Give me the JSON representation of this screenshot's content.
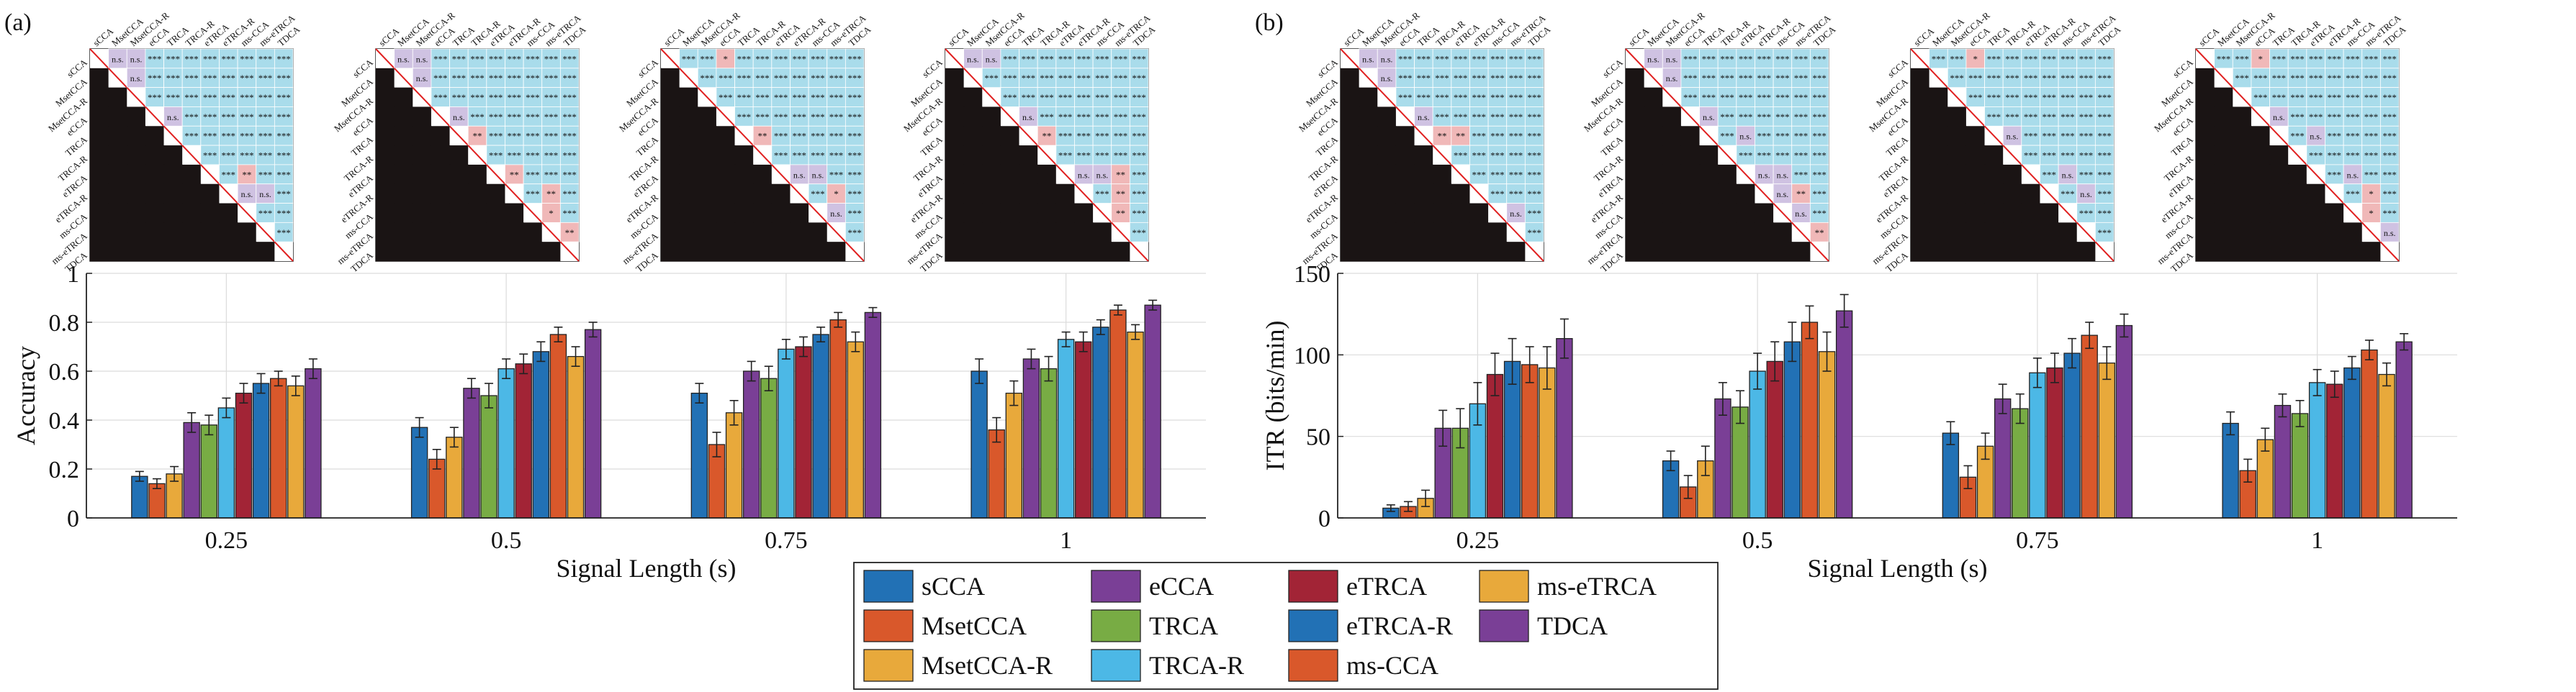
{
  "panels": [
    {
      "tag": "(a)",
      "ylabel": "Accuracy",
      "xlabel": "Signal Length (s)",
      "ylim": [
        0,
        1
      ],
      "yticks": [
        "0",
        "0.2",
        "0.4",
        "0.6",
        "0.8",
        "1"
      ],
      "xticks": [
        "0.25",
        "0.5",
        "0.75",
        "1"
      ]
    },
    {
      "tag": "(b)",
      "ylabel": "ITR (bits/min)",
      "xlabel": "Signal Length (s)",
      "ylim": [
        0,
        150
      ],
      "yticks": [
        "0",
        "50",
        "100",
        "150"
      ],
      "xticks": [
        "0.25",
        "0.5",
        "0.75",
        "1"
      ]
    }
  ],
  "legend": [
    "sCCA",
    "eCCA",
    "eTRCA",
    "ms-eTRCA",
    "MsetCCA",
    "TRCA",
    "eTRCA-R",
    "TDCA",
    "MsetCCA-R",
    "TRCA-R",
    "ms-CCA"
  ],
  "matrix_methods": [
    "sCCA",
    "MsetCCA",
    "MsetCCA-R",
    "eCCA",
    "TRCA",
    "TRCA-R",
    "eTRCA",
    "eTRCA-R",
    "ms-CCA",
    "ms-eTRCA",
    "TDCA"
  ],
  "significance": {
    "labels": [
      "***",
      "**",
      "*",
      "n.s."
    ],
    "colors": {
      "significant": "#a9dceb",
      "not_significant": "#cfc2e2",
      "reversed": "#f0b8b8",
      "lower": "#1a1414",
      "diag_line": "#e02020"
    }
  },
  "series_colors": {
    "sCCA": "#2271b5",
    "MsetCCA": "#d9582b",
    "MsetCCA-R": "#e8a93b",
    "eCCA": "#7a3f96",
    "TRCA": "#78ac44",
    "TRCA-R": "#4cb8e6",
    "eTRCA": "#a22436",
    "eTRCA-R": "#2271b5",
    "ms-CCA": "#d9582b",
    "ms-eTRCA": "#e8a93b",
    "TDCA": "#7a3f96"
  },
  "chart_data": [
    {
      "type": "bar",
      "title": "",
      "xlabel": "Signal Length (s)",
      "ylabel": "Accuracy",
      "ylim": [
        0,
        1
      ],
      "categories": [
        "0.25",
        "0.5",
        "0.75",
        "1"
      ],
      "series": [
        {
          "name": "sCCA",
          "values": [
            0.17,
            0.37,
            0.51,
            0.6
          ],
          "err": [
            0.02,
            0.04,
            0.04,
            0.05
          ]
        },
        {
          "name": "MsetCCA",
          "values": [
            0.14,
            0.24,
            0.3,
            0.36
          ],
          "err": [
            0.02,
            0.04,
            0.05,
            0.05
          ]
        },
        {
          "name": "MsetCCA-R",
          "values": [
            0.18,
            0.33,
            0.43,
            0.51
          ],
          "err": [
            0.03,
            0.04,
            0.05,
            0.05
          ]
        },
        {
          "name": "eCCA",
          "values": [
            0.39,
            0.53,
            0.6,
            0.65
          ],
          "err": [
            0.04,
            0.04,
            0.04,
            0.04
          ]
        },
        {
          "name": "TRCA",
          "values": [
            0.38,
            0.5,
            0.57,
            0.61
          ],
          "err": [
            0.04,
            0.05,
            0.05,
            0.05
          ]
        },
        {
          "name": "TRCA-R",
          "values": [
            0.45,
            0.61,
            0.69,
            0.73
          ],
          "err": [
            0.04,
            0.04,
            0.04,
            0.03
          ]
        },
        {
          "name": "eTRCA",
          "values": [
            0.51,
            0.63,
            0.7,
            0.72
          ],
          "err": [
            0.04,
            0.04,
            0.04,
            0.04
          ]
        },
        {
          "name": "eTRCA-R",
          "values": [
            0.55,
            0.68,
            0.75,
            0.78
          ],
          "err": [
            0.04,
            0.04,
            0.03,
            0.03
          ]
        },
        {
          "name": "ms-CCA",
          "values": [
            0.57,
            0.75,
            0.81,
            0.85
          ],
          "err": [
            0.03,
            0.03,
            0.03,
            0.02
          ]
        },
        {
          "name": "ms-eTRCA",
          "values": [
            0.54,
            0.66,
            0.72,
            0.76
          ],
          "err": [
            0.04,
            0.04,
            0.04,
            0.03
          ]
        },
        {
          "name": "TDCA",
          "values": [
            0.61,
            0.77,
            0.84,
            0.87
          ],
          "err": [
            0.04,
            0.03,
            0.02,
            0.02
          ]
        }
      ]
    },
    {
      "type": "bar",
      "title": "",
      "xlabel": "Signal Length (s)",
      "ylabel": "ITR (bits/min)",
      "ylim": [
        0,
        150
      ],
      "categories": [
        "0.25",
        "0.5",
        "0.75",
        "1"
      ],
      "series": [
        {
          "name": "sCCA",
          "values": [
            6,
            35,
            52,
            58
          ],
          "err": [
            2,
            6,
            7,
            7
          ]
        },
        {
          "name": "MsetCCA",
          "values": [
            7,
            19,
            25,
            29
          ],
          "err": [
            3,
            7,
            7,
            7
          ]
        },
        {
          "name": "MsetCCA-R",
          "values": [
            12,
            35,
            44,
            48
          ],
          "err": [
            5,
            9,
            8,
            7
          ]
        },
        {
          "name": "eCCA",
          "values": [
            55,
            73,
            73,
            69
          ],
          "err": [
            11,
            10,
            9,
            7
          ]
        },
        {
          "name": "TRCA",
          "values": [
            55,
            68,
            67,
            64
          ],
          "err": [
            12,
            10,
            9,
            8
          ]
        },
        {
          "name": "TRCA-R",
          "values": [
            70,
            90,
            89,
            83
          ],
          "err": [
            13,
            11,
            9,
            8
          ]
        },
        {
          "name": "eTRCA",
          "values": [
            88,
            96,
            92,
            82
          ],
          "err": [
            13,
            12,
            9,
            8
          ]
        },
        {
          "name": "eTRCA-R",
          "values": [
            96,
            108,
            101,
            92
          ],
          "err": [
            14,
            12,
            9,
            7
          ]
        },
        {
          "name": "ms-CCA",
          "values": [
            94,
            120,
            112,
            103
          ],
          "err": [
            11,
            10,
            8,
            6
          ]
        },
        {
          "name": "ms-eTRCA",
          "values": [
            92,
            102,
            95,
            88
          ],
          "err": [
            13,
            12,
            10,
            7
          ]
        },
        {
          "name": "TDCA",
          "values": [
            110,
            127,
            118,
            108
          ],
          "err": [
            12,
            10,
            7,
            5
          ]
        }
      ]
    }
  ],
  "matrices": [
    {
      "overrides": {
        "0-1": "n.s.",
        "0-2": "n.s.",
        "1-2": "n.s.",
        "3-4": "n.s.",
        "6-8": "**",
        "7-8": "n.s.",
        "7-9": "n.s."
      }
    },
    {
      "overrides": {
        "0-1": "n.s.",
        "0-2": "n.s.",
        "1-2": "n.s.",
        "3-4": "n.s.",
        "4-5": "**",
        "6-7": "**",
        "7-9": "**",
        "8-9": "*",
        "9-10": "**"
      }
    },
    {
      "overrides": {
        "0-3": "*",
        "4-5": "**",
        "6-7": "n.s.",
        "6-8": "n.s.",
        "7-9": "*",
        "8-9": "n.s."
      }
    },
    {
      "overrides": {
        "0-1": "n.s.",
        "0-2": "n.s.",
        "3-4": "n.s.",
        "4-5": "**",
        "6-7": "n.s.",
        "6-8": "n.s.",
        "6-9": "**",
        "7-9": "**",
        "8-9": "**"
      }
    },
    {
      "overrides": {
        "0-1": "n.s.",
        "0-2": "n.s.",
        "1-2": "n.s.",
        "3-4": "n.s.",
        "4-5": "**",
        "4-6": "**",
        "8-9": "n.s."
      }
    },
    {
      "overrides": {
        "0-1": "n.s.",
        "0-2": "n.s.",
        "1-2": "n.s.",
        "3-4": "n.s.",
        "4-6": "n.s.",
        "6-7": "n.s.",
        "6-8": "n.s.",
        "7-8": "n.s.",
        "7-9": "**",
        "8-9": "n.s.",
        "9-10": "**"
      }
    },
    {
      "overrides": {
        "0-3": "*",
        "4-5": "n.s.",
        "6-8": "n.s.",
        "7-9": "n.s."
      }
    },
    {
      "overrides": {
        "0-3": "*",
        "3-4": "n.s.",
        "4-6": "n.s.",
        "6-8": "n.s.",
        "7-9": "*",
        "8-9": "*",
        "9-10": "n.s."
      }
    }
  ]
}
